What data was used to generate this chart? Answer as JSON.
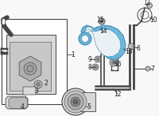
{
  "bg_color": "#f8f8f8",
  "highlight_color": "#6ab4d8",
  "highlight_edge": "#3a8ab8",
  "line_color": "#444444",
  "dark_color": "#222222",
  "gray_light": "#d8d8d8",
  "gray_mid": "#bbbbbb",
  "gray_dark": "#888888",
  "white": "#ffffff",
  "figsize": [
    2.0,
    1.47
  ],
  "dpi": 100
}
